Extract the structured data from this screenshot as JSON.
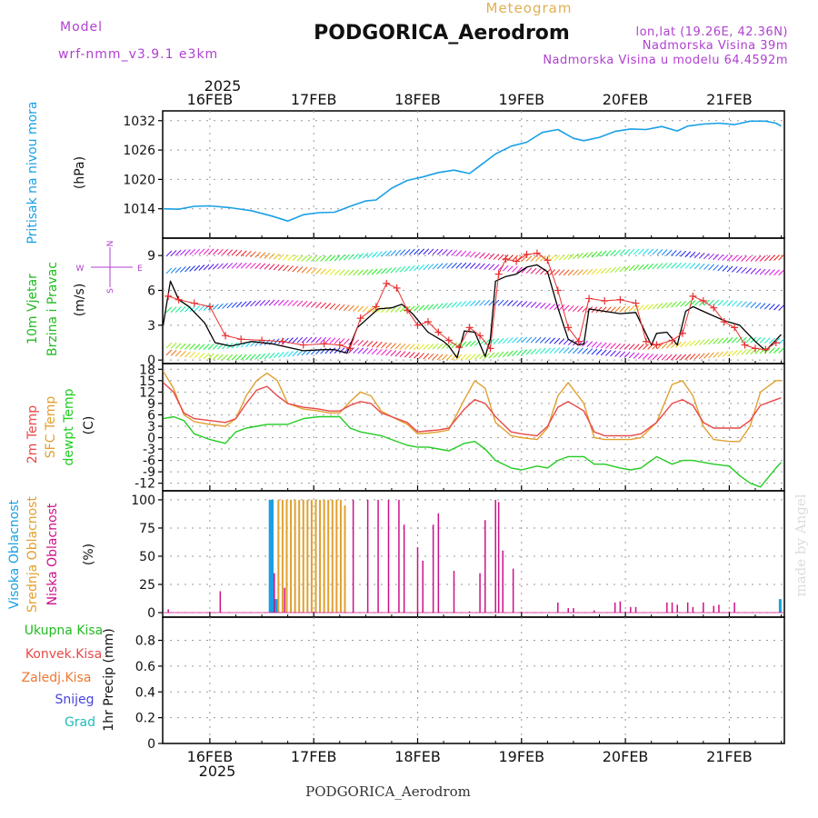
{
  "header": {
    "meteogram_label": "Meteogram",
    "station_title": "PODGORICA_Aerodrom",
    "model_label": "Model",
    "model_name": "wrf-nmm_v3.9.1 e3km",
    "lonlat": "lon,lat (19.26E, 42.36N)",
    "elevation": "Nadmorska Visina 39m",
    "model_elevation": "Nadmorska Visina u modelu 64.4592m",
    "footer_station": "PODGORICA_Aerodrom",
    "watermark": "made by Angel"
  },
  "colors": {
    "pressure": "#1aa0e6",
    "temp2m": "#e84848",
    "sfc_temp": "#e0a030",
    "dewpt": "#22cc22",
    "high_cloud": "#18a0e0",
    "mid_cloud": "#e0a030",
    "low_cloud": "#cc1188",
    "wind_speed": "#000000",
    "gust": "#e83030",
    "label_purple": "#b040d0",
    "meteogram_orange": "#e0b050"
  },
  "time_axis": {
    "year": "2025",
    "day_labels": [
      "16FEB",
      "17FEB",
      "18FEB",
      "19FEB",
      "20FEB",
      "21FEB"
    ]
  },
  "chart_data": [
    {
      "type": "line",
      "name": "pressure",
      "ylabel": "(hPa)",
      "title_lines": [
        "Pritisak na nivou mora"
      ],
      "yticks": [
        1014,
        1020,
        1026,
        1032
      ],
      "ylim": [
        1008,
        1034
      ],
      "x": [
        15.55,
        15.7,
        15.85,
        16.0,
        16.2,
        16.4,
        16.6,
        16.75,
        16.9,
        17.05,
        17.2,
        17.35,
        17.5,
        17.6,
        17.75,
        17.9,
        18.05,
        18.2,
        18.35,
        18.5,
        18.6,
        18.75,
        18.9,
        19.05,
        19.2,
        19.35,
        19.5,
        19.6,
        19.75,
        19.9,
        20.05,
        20.2,
        20.35,
        20.5,
        20.6,
        20.75,
        20.9,
        21.05,
        21.2,
        21.35,
        21.45,
        21.5
      ],
      "values": [
        1014,
        1013.9,
        1014.5,
        1014.6,
        1014.2,
        1013.6,
        1012.5,
        1011.5,
        1012.8,
        1013.2,
        1013.3,
        1014.5,
        1015.6,
        1015.8,
        1018.2,
        1019.8,
        1020.5,
        1021.4,
        1021.9,
        1021.2,
        1022.8,
        1025.2,
        1026.8,
        1027.6,
        1029.6,
        1030.2,
        1028.4,
        1027.9,
        1028.6,
        1029.8,
        1030.3,
        1030.2,
        1030.8,
        1029.9,
        1030.9,
        1031.3,
        1031.5,
        1031.2,
        1031.9,
        1031.9,
        1031.5,
        1030.9
      ]
    },
    {
      "type": "line",
      "name": "wind",
      "ylabel": "(m/s)",
      "title_lines": [
        "10m Vjetar",
        "Brzina i Pravac"
      ],
      "compass_labels": {
        "n": "N",
        "s": "S",
        "e": "E",
        "w": "W"
      },
      "yticks": [
        0,
        3,
        6,
        9
      ],
      "ylim": [
        -0.3,
        10.5
      ],
      "series": [
        {
          "name": "wind speed",
          "x": [
            15.55,
            15.62,
            15.7,
            15.8,
            15.95,
            16.05,
            16.2,
            16.4,
            16.6,
            16.9,
            17.1,
            17.2,
            17.32,
            17.42,
            17.52,
            17.62,
            17.75,
            17.85,
            17.95,
            18.1,
            18.25,
            18.3,
            18.38,
            18.45,
            18.55,
            18.65,
            18.7,
            18.75,
            18.85,
            18.95,
            19.05,
            19.15,
            19.25,
            19.35,
            19.45,
            19.55,
            19.6,
            19.65,
            19.8,
            19.95,
            20.1,
            20.25,
            20.3,
            20.4,
            20.5,
            20.58,
            20.65,
            20.8,
            20.95,
            21.1,
            21.25,
            21.35,
            21.5
          ],
          "values": [
            3,
            6.8,
            5.2,
            4.6,
            3.2,
            1.5,
            1.2,
            1.6,
            1.4,
            0.8,
            0.9,
            0.9,
            0.6,
            2.8,
            3.6,
            4.4,
            4.5,
            4.8,
            4.0,
            2.4,
            1.6,
            1.2,
            0.2,
            2.5,
            2.4,
            0.3,
            1.8,
            6.8,
            7.2,
            7.4,
            8.0,
            8.2,
            7.6,
            4.5,
            1.8,
            1.3,
            1.4,
            4.4,
            4.2,
            4.0,
            4.1,
            1.3,
            2.3,
            2.4,
            1.3,
            4.2,
            4.6,
            4.0,
            3.4,
            3.0,
            1.6,
            0.8,
            2.2
          ]
        },
        {
          "name": "gust",
          "x": [
            15.6,
            15.7,
            15.85,
            16.0,
            16.15,
            16.3,
            16.5,
            16.7,
            16.9,
            17.1,
            17.25,
            17.35,
            17.45,
            17.6,
            17.7,
            17.8,
            17.9,
            18.0,
            18.1,
            18.2,
            18.3,
            18.4,
            18.5,
            18.6,
            18.7,
            18.78,
            18.85,
            18.95,
            19.05,
            19.15,
            19.25,
            19.35,
            19.45,
            19.55,
            19.65,
            19.8,
            19.95,
            20.1,
            20.2,
            20.3,
            20.45,
            20.55,
            20.65,
            20.75,
            20.85,
            20.95,
            21.05,
            21.15,
            21.25,
            21.35,
            21.45
          ],
          "values": [
            5.5,
            5.2,
            4.9,
            4.6,
            2.1,
            1.8,
            1.7,
            1.6,
            1.3,
            1.4,
            1.3,
            1.0,
            3.6,
            4.6,
            6.6,
            6.2,
            4.3,
            3.0,
            3.3,
            2.4,
            1.7,
            1.1,
            2.8,
            2.1,
            1.0,
            7.4,
            8.7,
            8.5,
            9.1,
            9.2,
            8.6,
            6.0,
            2.8,
            1.6,
            5.3,
            5.1,
            5.2,
            4.9,
            1.6,
            1.3,
            1.7,
            2.3,
            5.5,
            5.1,
            4.5,
            3.3,
            2.8,
            1.3,
            1.0,
            0.9,
            1.5
          ]
        }
      ]
    },
    {
      "type": "line",
      "name": "temperature",
      "ylabel": "(C)",
      "title_lines": [
        "2m Temp",
        "SFC Temp",
        "dewpt Temp"
      ],
      "yticks": [
        -12,
        -9,
        -6,
        -3,
        0,
        3,
        6,
        9,
        12,
        15,
        18
      ],
      "ylim": [
        -14,
        19.5
      ],
      "series": [
        {
          "name": "SFC Temp",
          "x": [
            15.55,
            15.65,
            15.75,
            15.85,
            16.0,
            16.15,
            16.25,
            16.35,
            16.45,
            16.55,
            16.65,
            16.75,
            16.9,
            17.05,
            17.15,
            17.25,
            17.35,
            17.45,
            17.55,
            17.65,
            17.75,
            17.9,
            18.0,
            18.1,
            18.2,
            18.3,
            18.45,
            18.55,
            18.65,
            18.75,
            18.9,
            19.0,
            19.15,
            19.25,
            19.35,
            19.45,
            19.6,
            19.7,
            19.8,
            19.95,
            20.05,
            20.15,
            20.3,
            20.45,
            20.55,
            20.65,
            20.75,
            20.85,
            21.0,
            21.1,
            21.2,
            21.3,
            21.45,
            21.5
          ],
          "values": [
            17.5,
            13,
            6,
            4.2,
            3.5,
            3,
            5,
            11,
            15,
            17,
            15,
            9,
            7.5,
            7,
            6.5,
            6.5,
            9.5,
            12,
            11,
            7,
            5.5,
            3.5,
            1,
            1.2,
            1.5,
            2,
            10,
            15,
            13,
            4,
            0.5,
            0,
            -0.5,
            2.5,
            11,
            14.5,
            9,
            0,
            -0.5,
            -0.5,
            -0.5,
            0,
            4,
            14,
            15,
            11,
            3,
            -0.5,
            -1,
            -1,
            3,
            12,
            15,
            15
          ]
        },
        {
          "name": "2m Temp",
          "x": [
            15.55,
            15.65,
            15.75,
            15.85,
            16.0,
            16.15,
            16.25,
            16.35,
            16.45,
            16.55,
            16.65,
            16.75,
            16.9,
            17.05,
            17.15,
            17.25,
            17.35,
            17.45,
            17.55,
            17.65,
            17.75,
            17.9,
            18.0,
            18.1,
            18.2,
            18.3,
            18.45,
            18.55,
            18.65,
            18.75,
            18.9,
            19.0,
            19.15,
            19.25,
            19.35,
            19.45,
            19.6,
            19.7,
            19.8,
            19.95,
            20.05,
            20.15,
            20.3,
            20.45,
            20.55,
            20.65,
            20.75,
            20.85,
            21.0,
            21.1,
            21.2,
            21.3,
            21.45,
            21.5
          ],
          "values": [
            14.5,
            12,
            6.5,
            5,
            4.5,
            4,
            5,
            9,
            12.5,
            13.5,
            11,
            9,
            8,
            7.5,
            7,
            7,
            8.5,
            9.5,
            9,
            6.5,
            5.5,
            4,
            1.5,
            1.8,
            2,
            2.5,
            7.5,
            10,
            9,
            5.5,
            1.5,
            1,
            0.5,
            3,
            8,
            9.5,
            7,
            1.5,
            0.5,
            0.5,
            0.5,
            1,
            4,
            9,
            10,
            8.5,
            4,
            2.5,
            2.5,
            2.5,
            4.5,
            8.5,
            10,
            10.5
          ]
        },
        {
          "name": "dewpt Temp",
          "x": [
            15.55,
            15.65,
            15.75,
            15.85,
            16.0,
            16.15,
            16.25,
            16.35,
            16.45,
            16.55,
            16.65,
            16.75,
            16.9,
            17.05,
            17.15,
            17.25,
            17.35,
            17.45,
            17.55,
            17.65,
            17.75,
            17.9,
            18.0,
            18.1,
            18.2,
            18.3,
            18.45,
            18.55,
            18.65,
            18.75,
            18.9,
            19.0,
            19.15,
            19.25,
            19.35,
            19.45,
            19.6,
            19.7,
            19.8,
            19.95,
            20.05,
            20.15,
            20.3,
            20.45,
            20.55,
            20.65,
            20.75,
            20.85,
            21.0,
            21.1,
            21.2,
            21.3,
            21.45,
            21.5
          ],
          "values": [
            5,
            5.5,
            4.5,
            1,
            -0.5,
            -1.5,
            1.5,
            2.5,
            3,
            3.5,
            3.5,
            3.5,
            5,
            5.5,
            5.5,
            5.5,
            2.5,
            1.5,
            1,
            0.5,
            -0.5,
            -2,
            -2.5,
            -2.5,
            -3,
            -3.5,
            -1.5,
            -1,
            -3,
            -6,
            -8,
            -8.5,
            -7.5,
            -8,
            -6,
            -5,
            -5,
            -7,
            -7,
            -8,
            -8.5,
            -8,
            -5,
            -7,
            -6,
            -6,
            -6.5,
            -7,
            -7.5,
            -10,
            -12,
            -13,
            -8,
            -6.5
          ]
        }
      ]
    },
    {
      "type": "bar",
      "name": "cloud cover",
      "ylabel": "(%)",
      "title_lines": [
        "Visoka Oblacnost",
        "Srednja Oblacnost",
        "Niska Oblacnost"
      ],
      "yticks": [
        0,
        25,
        50,
        75,
        100
      ],
      "ylim": [
        -4,
        108
      ],
      "series": [
        {
          "name": "Visoka Oblacnost",
          "x": [
            16.58,
            16.6,
            16.62,
            16.64,
            21.49
          ],
          "values": [
            100,
            100,
            12,
            12,
            12
          ]
        },
        {
          "name": "Srednja Oblacnost",
          "x": [
            16.66,
            16.7,
            16.74,
            16.78,
            16.82,
            16.86,
            16.9,
            16.94,
            16.98,
            17.02,
            17.06,
            17.1,
            17.14,
            17.18,
            17.22,
            17.26,
            17.3
          ],
          "values": [
            100,
            100,
            100,
            100,
            100,
            100,
            100,
            100,
            100,
            100,
            100,
            100,
            100,
            100,
            100,
            100,
            95
          ]
        },
        {
          "name": "Niska Oblacnost",
          "x": [
            15.6,
            16.1,
            16.62,
            16.72,
            17.38,
            17.52,
            17.62,
            17.72,
            17.82,
            17.87,
            18.0,
            18.05,
            18.15,
            18.2,
            18.35,
            18.5,
            18.6,
            18.65,
            18.75,
            18.78,
            18.82,
            18.92,
            19.35,
            19.45,
            19.5,
            19.7,
            19.9,
            19.95,
            20.05,
            20.1,
            20.4,
            20.45,
            20.5,
            20.6,
            20.65,
            20.75,
            20.85,
            20.9,
            21.05
          ],
          "values": [
            3,
            19,
            35,
            22,
            100,
            100,
            100,
            100,
            100,
            78,
            58,
            46,
            78,
            88,
            37,
            1,
            35,
            82,
            100,
            98,
            55,
            39,
            9,
            4,
            4,
            2,
            9,
            10,
            5,
            5,
            9,
            9,
            7,
            9,
            5,
            9,
            6,
            7,
            9
          ]
        }
      ]
    },
    {
      "type": "bar",
      "name": "precipitation",
      "ylabel": "1hr Precip (mm)",
      "title_lines": [
        "Ukupna Kisa",
        "Konvek.Kisa",
        "Zaledj.Kisa",
        "Snijeg",
        "Grad"
      ],
      "yticks": [
        "0",
        "0.2",
        "0.4",
        "0.6",
        "0.8"
      ],
      "ylim": [
        0,
        0.98
      ],
      "series": [
        {
          "name": "Ukupna Kisa",
          "x": [],
          "values": []
        },
        {
          "name": "Konvek.Kisa",
          "x": [],
          "values": []
        },
        {
          "name": "Zaledj.Kisa",
          "x": [],
          "values": []
        },
        {
          "name": "Snijeg",
          "x": [],
          "values": []
        },
        {
          "name": "Grad",
          "x": [],
          "values": []
        }
      ]
    }
  ]
}
